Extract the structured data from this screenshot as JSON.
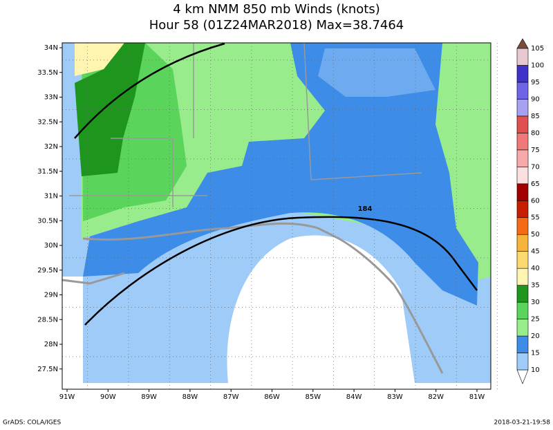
{
  "title": [
    "4 km NMM 850 mb Winds (knots)",
    "Hour 58 (01Z24MAR2018) Max=38.7464"
  ],
  "annotation": "184",
  "lat_labels": [
    "34N",
    "33.5N",
    "33N",
    "32.5N",
    "32N",
    "31.5N",
    "31N",
    "30.5N",
    "30N",
    "29.5N",
    "29N",
    "28.5N",
    "28N",
    "27.5N"
  ],
  "lon_labels": [
    "91W",
    "90W",
    "89W",
    "88W",
    "87W",
    "86W",
    "85W",
    "84W",
    "83W",
    "82W",
    "81W"
  ],
  "legend": {
    "levels": [
      10,
      15,
      20,
      25,
      30,
      35,
      40,
      45,
      50,
      55,
      60,
      65,
      70,
      75,
      80,
      85,
      90,
      95,
      100,
      105
    ],
    "colors": [
      "#ffffff",
      "#9ecbf7",
      "#3d8ce8",
      "#98ec8c",
      "#5bd45b",
      "#1e961e",
      "#fff5b0",
      "#fada6e",
      "#f5b43c",
      "#f56a14",
      "#c81e00",
      "#a00000",
      "#fce0e0",
      "#f8aaaa",
      "#f07878",
      "#e05050",
      "#a8a0f0",
      "#6e64e6",
      "#4032c8",
      "#e6c8d0",
      "#dcb4a0",
      "#a8786a",
      "#7a4a3a"
    ]
  },
  "footer_left": "GrADS: COLA/IGES",
  "footer_right": "2018-03-21-19:58"
}
